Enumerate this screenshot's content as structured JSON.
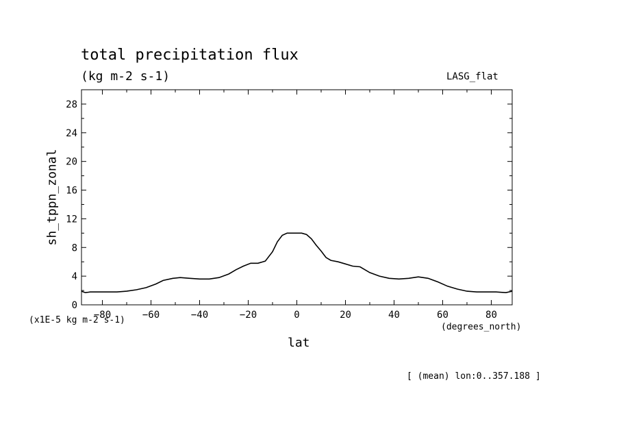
{
  "chart_data": {
    "type": "line",
    "title": "total precipitation flux",
    "subtitle": "(kg m-2 s-1)",
    "model_label": "LASG_flat",
    "ylabel": "sh_tppn_zonal",
    "yscale_note": "(x1E-5 kg m-2 s-1)",
    "xlabel": "lat",
    "xunits": "(degrees_north)",
    "footer": "[ (mean) lon:0..357.188 ]",
    "xlim": [
      -88.6,
      88.6
    ],
    "ylim": [
      0,
      30
    ],
    "xticks": [
      -80,
      -60,
      -40,
      -20,
      0,
      20,
      40,
      60,
      80
    ],
    "yticks": [
      0,
      4,
      8,
      12,
      16,
      20,
      24,
      28
    ],
    "grid": false,
    "series": [
      {
        "x": [
          -88.6,
          -87,
          -85,
          -82,
          -78,
          -74,
          -70,
          -66,
          -62,
          -58,
          -55,
          -51,
          -48,
          -44,
          -40,
          -36,
          -32,
          -28,
          -25,
          -22,
          -19,
          -16,
          -13,
          -10,
          -8,
          -6,
          -4,
          -2,
          0,
          2,
          4,
          6,
          8,
          10,
          12,
          14,
          17,
          20,
          23,
          26,
          30,
          34,
          38,
          42,
          46,
          50,
          54,
          58,
          62,
          66,
          70,
          74,
          78,
          82,
          86,
          88.6
        ],
        "y": [
          1.9,
          1.7,
          1.8,
          1.8,
          1.8,
          1.8,
          1.9,
          2.1,
          2.4,
          2.9,
          3.4,
          3.7,
          3.8,
          3.7,
          3.6,
          3.6,
          3.8,
          4.3,
          4.9,
          5.4,
          5.8,
          5.8,
          6.1,
          7.4,
          8.8,
          9.7,
          10.0,
          10.0,
          10.0,
          10.0,
          9.8,
          9.2,
          8.3,
          7.5,
          6.6,
          6.2,
          6.0,
          5.7,
          5.4,
          5.3,
          4.5,
          4.0,
          3.7,
          3.6,
          3.7,
          3.9,
          3.7,
          3.2,
          2.6,
          2.2,
          1.9,
          1.8,
          1.8,
          1.8,
          1.7,
          1.9
        ]
      }
    ]
  }
}
